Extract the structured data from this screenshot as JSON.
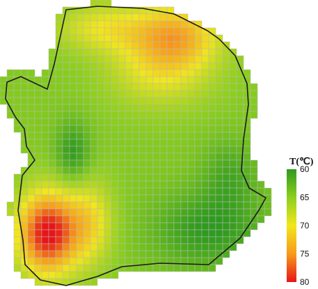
{
  "chart_data": {
    "type": "heatmap",
    "title": "",
    "legend": {
      "title": "T(℃)",
      "ticks": [
        60,
        65,
        70,
        75,
        80
      ],
      "range": [
        60,
        80
      ],
      "colors": [
        "#2e9a1e",
        "#8ccf1e",
        "#f2e61c",
        "#f79a1a",
        "#e81418"
      ]
    },
    "grid_on": true,
    "legend_placement": "right",
    "hotspots": [
      {
        "name": "south-west hot zone",
        "peak_temperature": 80
      },
      {
        "name": "north-east warm zone",
        "peak_temperature": 73
      }
    ]
  }
}
